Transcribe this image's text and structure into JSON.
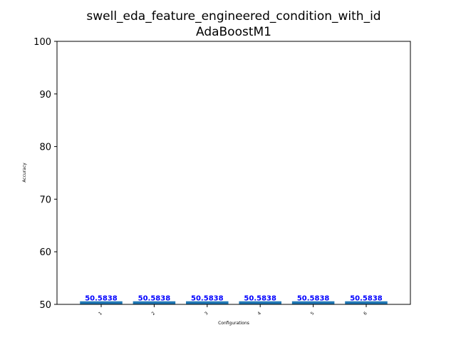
{
  "chart_data": {
    "type": "bar",
    "title": "swell_eda_feature_engineered_condition_with_id",
    "subtitle": "AdaBoostM1",
    "xlabel": "Configurations",
    "ylabel": "Accuracy",
    "categories": [
      "1",
      "2",
      "3",
      "4",
      "5",
      "6"
    ],
    "values": [
      50.5838,
      50.5838,
      50.5838,
      50.5838,
      50.5838,
      50.5838
    ],
    "data_labels": [
      "50.5838",
      "50.5838",
      "50.5838",
      "50.5838",
      "50.5838",
      "50.5838"
    ],
    "ylim": [
      50,
      100
    ],
    "yticks": [
      50,
      60,
      70,
      80,
      90,
      100
    ],
    "grid": false,
    "bar_color": "#1f77b4",
    "label_color": "#0000ff"
  }
}
